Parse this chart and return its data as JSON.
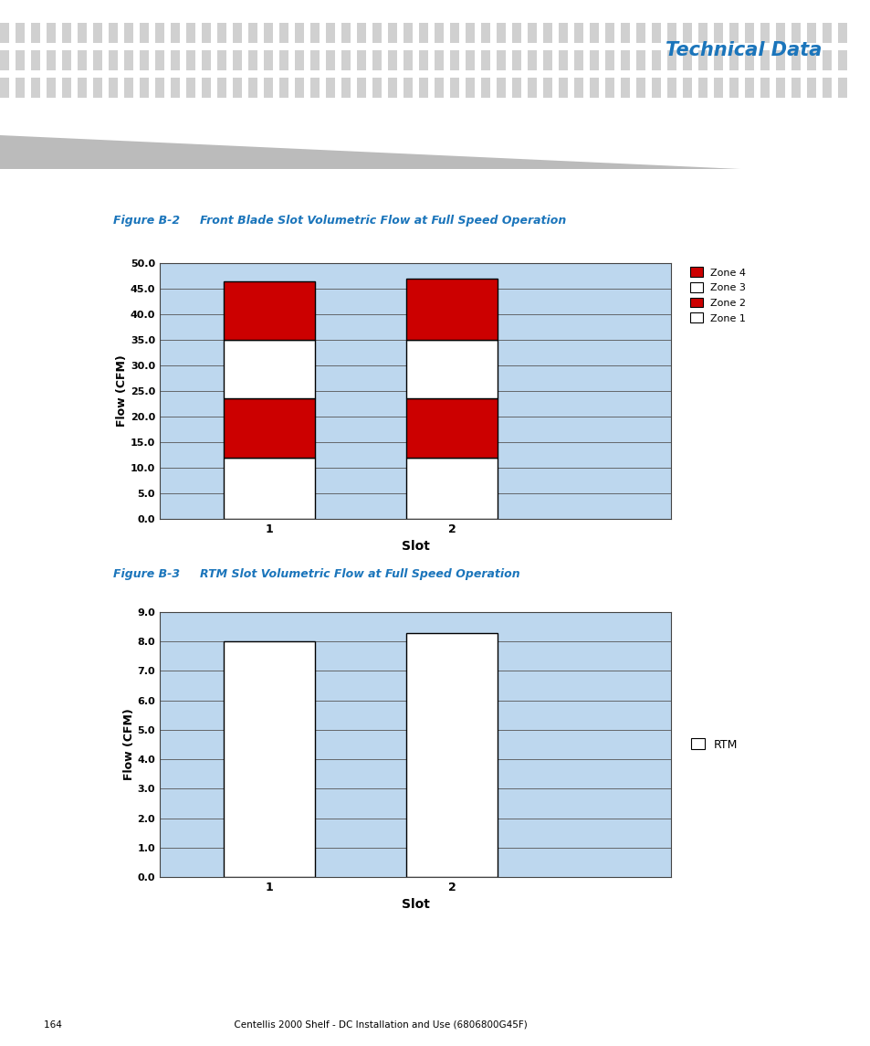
{
  "fig_b2_title": "Figure B-2     Front Blade Slot Volumetric Flow at Full Speed Operation",
  "fig_b3_title": "Figure B-3     RTM Slot Volumetric Flow at Full Speed Operation",
  "header_title": "Technical Data",
  "footer_text": "164                                                          Centellis 2000 Shelf - DC Installation and Use (6806800G45F)",
  "chart1": {
    "zone1": [
      12.0,
      12.0
    ],
    "zone2": [
      11.5,
      11.5
    ],
    "zone3": [
      11.5,
      11.5
    ],
    "zone4": [
      11.5,
      12.0
    ],
    "ylim": [
      0,
      50
    ],
    "yticks": [
      0.0,
      5.0,
      10.0,
      15.0,
      20.0,
      25.0,
      30.0,
      35.0,
      40.0,
      45.0,
      50.0
    ],
    "xlabel": "Slot",
    "ylabel": "Flow (CFM)",
    "zone1_color": "#FFFFFF",
    "zone2_color": "#CC0000",
    "zone3_color": "#FFFFFF",
    "zone4_color": "#CC0000",
    "bg_color": "#BDD7EE",
    "bar_edge_color": "#000000",
    "grid_color": "#555555"
  },
  "chart2": {
    "rtm": [
      8.0,
      8.3
    ],
    "ylim": [
      0,
      9.0
    ],
    "yticks": [
      0.0,
      1.0,
      2.0,
      3.0,
      4.0,
      5.0,
      6.0,
      7.0,
      8.0,
      9.0
    ],
    "xlabel": "Slot",
    "ylabel": "Flow (CFM)",
    "rtm_color": "#FFFFFF",
    "bg_color": "#BDD7EE",
    "bar_edge_color": "#000000",
    "grid_color": "#555555"
  },
  "title_color": "#1B75BB",
  "figure_label_color": "#1B75BB",
  "dot_color": "#D0D0D0",
  "blue_bar_color": "#1B75BB",
  "gray_color": "#BBBBBB"
}
